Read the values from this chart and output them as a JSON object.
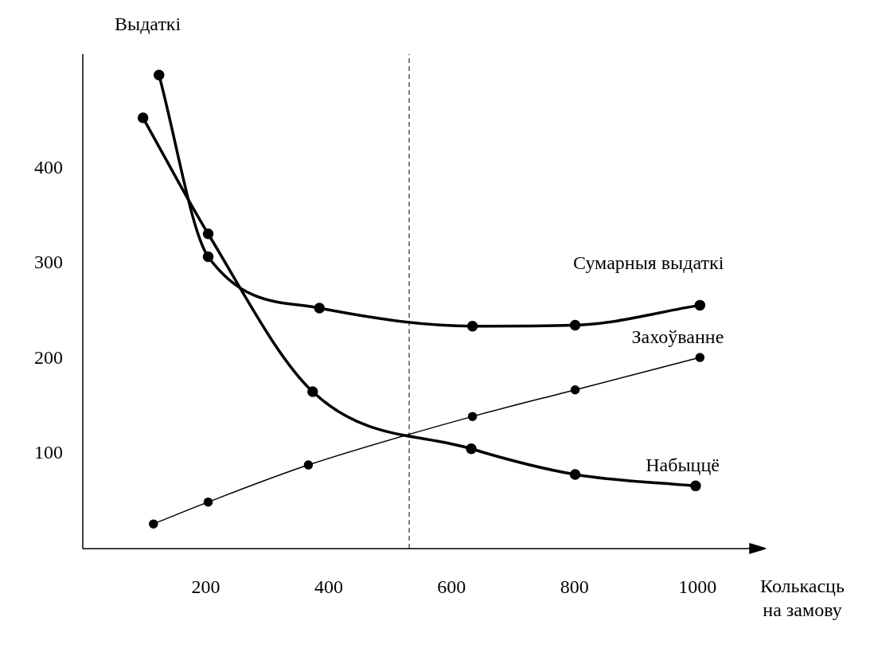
{
  "chart_data": {
    "type": "line",
    "xlabel": "Колькасць\nна замову",
    "ylabel": "Выдаткі",
    "xlim": [
      0,
      1080
    ],
    "ylim": [
      0,
      520
    ],
    "xticks": [
      200,
      400,
      600,
      800,
      1000
    ],
    "yticks": [
      100,
      200,
      300,
      400
    ],
    "grid": false,
    "legend": false,
    "marker": "circle",
    "line_style": "solid",
    "series": [
      {
        "name": "Сумарныя выдаткі",
        "color": "#000000",
        "x": [
          124,
          204,
          385,
          634,
          801,
          1004
        ],
        "values": [
          498,
          307,
          253,
          234,
          235,
          256
        ]
      },
      {
        "name": "Захоўванне",
        "color": "#000000",
        "x": [
          115,
          204,
          367,
          634,
          801,
          1004
        ],
        "values": [
          26,
          49,
          88,
          139,
          167,
          201
        ]
      },
      {
        "name": "Набыццё",
        "color": "#000000",
        "x": [
          98,
          204,
          374,
          632,
          801,
          997
        ],
        "values": [
          453,
          331,
          165,
          105,
          78,
          66
        ]
      }
    ],
    "ref_lines": [
      {
        "axis": "x",
        "value": 531,
        "line_style": "dashed",
        "color": "#000000"
      }
    ]
  }
}
